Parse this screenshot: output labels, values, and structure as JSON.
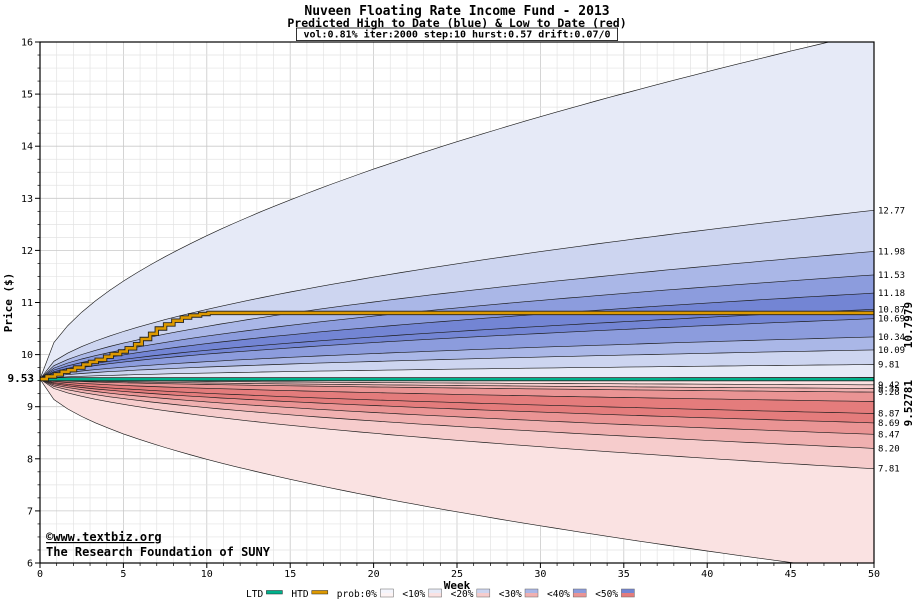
{
  "chart_data": {
    "type": "area",
    "title": "Nuveen Floating Rate Income Fund - 2013",
    "subtitle": "Predicted High to Date (blue) & Low to Date (red)",
    "params": "vol:0.81% iter:2000 step:10 hurst:0.57 drift:0.07/0",
    "xlabel": "Week",
    "ylabel": "Price ($)",
    "xlim": [
      0,
      50
    ],
    "ylim": [
      6,
      16
    ],
    "xticks": [
      0,
      5,
      10,
      15,
      20,
      25,
      30,
      35,
      40,
      45,
      50
    ],
    "yticks": [
      6,
      7,
      8,
      9,
      10,
      11,
      12,
      13,
      14,
      15,
      16
    ],
    "grid": {
      "on": true,
      "x_minor": 1,
      "y_minor": 0.25
    },
    "start_price": 9.53,
    "start_label": "9.53",
    "high_fan": {
      "description": "Predicted High-to-Date probability boundaries, values at week 50, top to bottom",
      "boundaries_end": [
        16.2,
        12.77,
        11.98,
        11.53,
        11.18,
        10.87,
        10.69,
        10.34,
        10.09,
        9.81,
        9.56
      ]
    },
    "low_fan": {
      "description": "Predicted Low-to-Date probability boundaries, values at week 50, top to bottom",
      "boundaries_end": [
        9.5,
        9.42,
        9.35,
        9.28,
        9.1,
        8.87,
        8.69,
        8.47,
        8.2,
        7.81,
        5.8
      ]
    },
    "right_labels": [
      "12.77",
      "11.98",
      "11.53",
      "11.18",
      "10.87",
      "10.69",
      "10.34",
      "10.09",
      "9.81",
      "9.42",
      "9.35",
      "9.28",
      "8.87",
      "8.69",
      "8.47",
      "8.20",
      "7.81"
    ],
    "htd": {
      "name": "HTD",
      "final_label": "10.7979",
      "color": "#dd9900",
      "label_color": "#cc8800",
      "points": [
        [
          0,
          9.53
        ],
        [
          0.4,
          9.58
        ],
        [
          0.9,
          9.62
        ],
        [
          1.3,
          9.67
        ],
        [
          1.7,
          9.7
        ],
        [
          2.1,
          9.75
        ],
        [
          2.6,
          9.81
        ],
        [
          3.0,
          9.86
        ],
        [
          3.4,
          9.9
        ],
        [
          3.9,
          9.96
        ],
        [
          4.3,
          10.01
        ],
        [
          4.8,
          10.06
        ],
        [
          5.2,
          10.12
        ],
        [
          5.7,
          10.2
        ],
        [
          6.1,
          10.3
        ],
        [
          6.6,
          10.4
        ],
        [
          7.0,
          10.5
        ],
        [
          7.5,
          10.58
        ],
        [
          8.0,
          10.65
        ],
        [
          8.5,
          10.71
        ],
        [
          9.0,
          10.75
        ],
        [
          9.6,
          10.78
        ],
        [
          10.1,
          10.8
        ],
        [
          50,
          10.8
        ]
      ]
    },
    "ltd": {
      "name": "LTD",
      "final_label": "9.52781",
      "color": "#00b18c",
      "label_color": "#008800",
      "points": [
        [
          0,
          9.53
        ],
        [
          0.7,
          9.528
        ],
        [
          50,
          9.528
        ]
      ]
    },
    "watermark": {
      "line1": "©www.textbiz.org",
      "line2": "The Research Foundation of SUNY",
      "color": "#1511c0"
    },
    "legend": {
      "prob_items": [
        {
          "label": "prob:0%",
          "blue": "#f4f5fc",
          "red": "#fdf4f4"
        },
        {
          "label": "<10%",
          "blue": "#e6eaf7",
          "red": "#fae2e2"
        },
        {
          "label": "<20%",
          "blue": "#cdd5f0",
          "red": "#f6cccc"
        },
        {
          "label": "<30%",
          "blue": "#aab7e7",
          "red": "#f0b0b0"
        },
        {
          "label": "<40%",
          "blue": "#8c9cdd",
          "red": "#ea9494"
        },
        {
          "label": "<50%",
          "blue": "#7385d4",
          "red": "#e47c7c"
        }
      ]
    }
  }
}
